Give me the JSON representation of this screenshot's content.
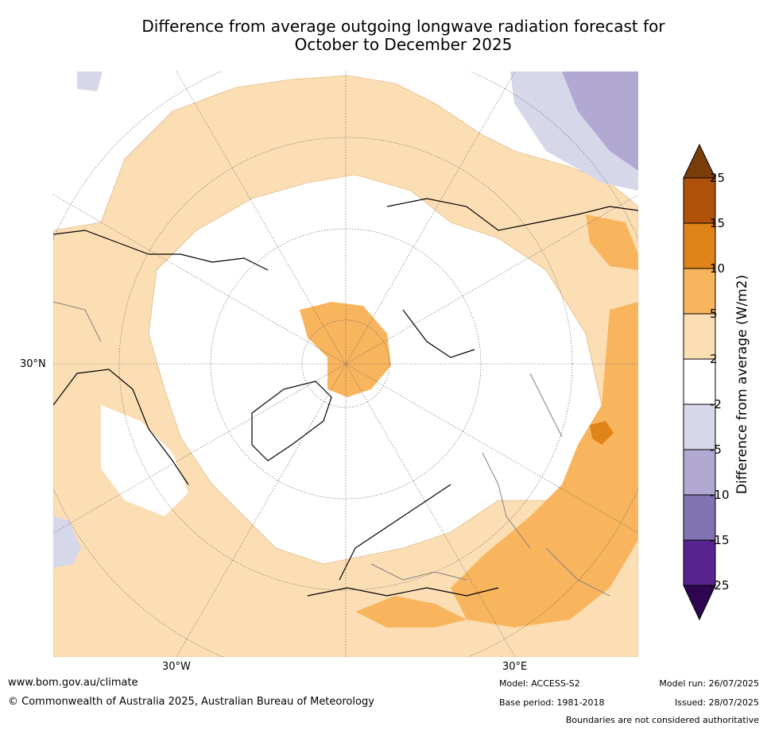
{
  "title": {
    "line1": "Difference from average outgoing longwave radiation forecast for",
    "line2": "October to December 2025"
  },
  "map": {
    "projection": "north-polar-stereographic",
    "latitude_labels": [
      "30°N"
    ],
    "longitude_labels": [
      "30°W",
      "30°E"
    ]
  },
  "colorbar": {
    "title": "Difference from average (W/m2)",
    "ticks": [
      "25",
      "15",
      "10",
      "5",
      "2",
      "-2",
      "-5",
      "-10",
      "-15",
      "-25"
    ],
    "colors": [
      "#7a3c08",
      "#b0520a",
      "#e08318",
      "#f8b55e",
      "#fcdeb4",
      "#ffffff",
      "#d7d7ea",
      "#b2a9d2",
      "#8273b2",
      "#582490",
      "#2e0650"
    ]
  },
  "footer": {
    "url": "www.bom.gov.au/climate",
    "copyright": "© Commonwealth of Australia 2025, Australian Bureau of Meteorology",
    "model": "Model: ACCESS-S2",
    "base_period": "Base period: 1981-2018",
    "model_run": "Model run: 26/07/2025",
    "issued": "Issued: 28/07/2025",
    "disclaimer": "Boundaries are not considered authoritative"
  }
}
